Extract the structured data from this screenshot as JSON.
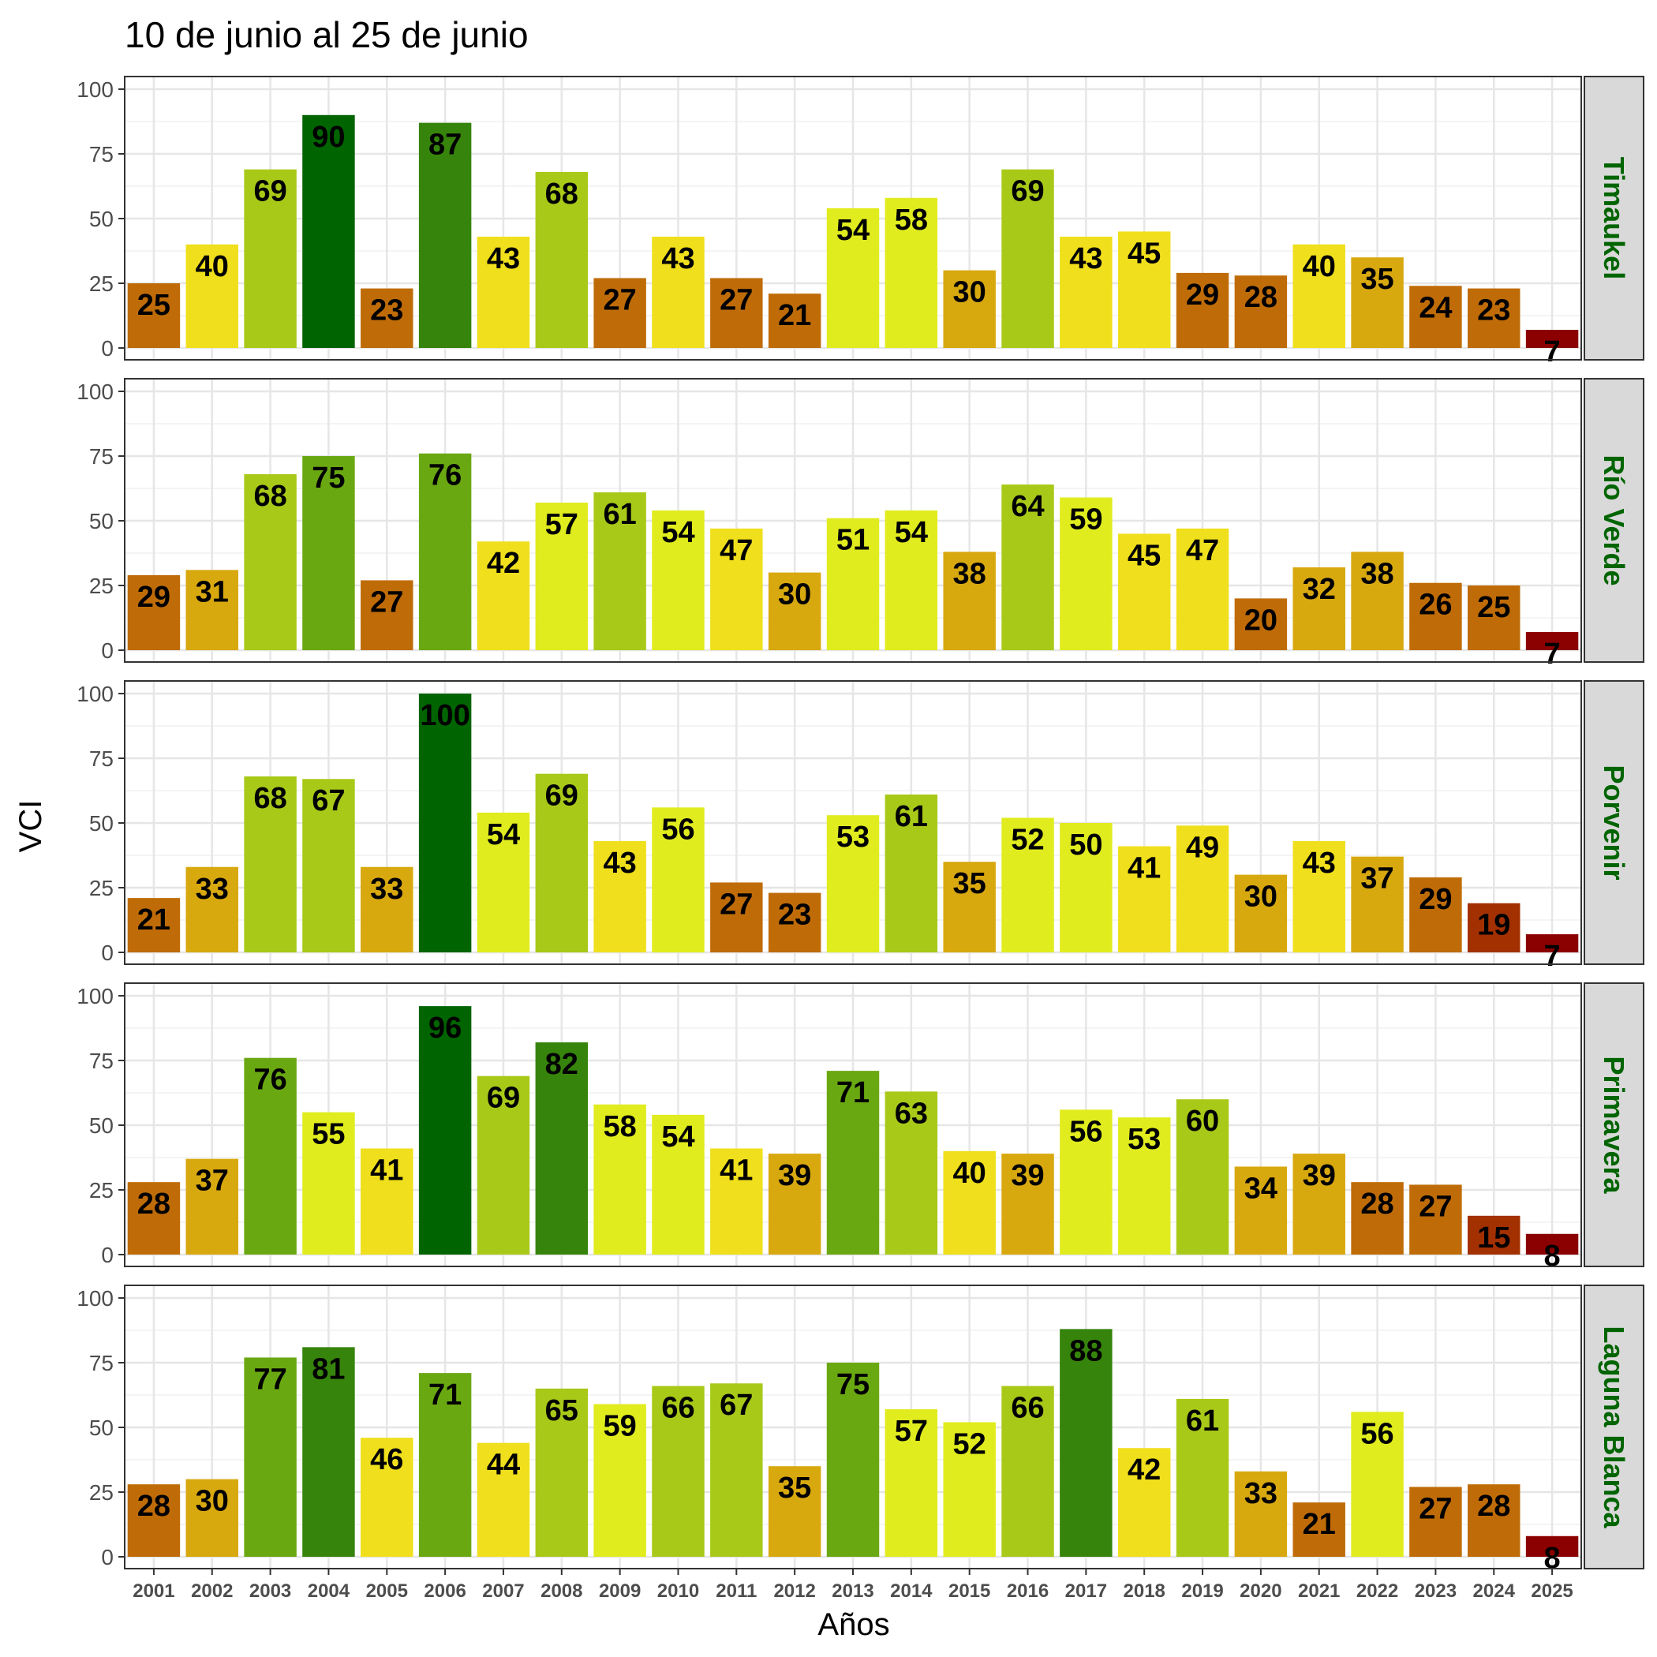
{
  "chart_data": {
    "type": "bar",
    "title": "10 de junio al 25 de junio",
    "xlabel": "Años",
    "ylabel": "VCI",
    "ylim": [
      0,
      100
    ],
    "yticks": [
      0,
      25,
      50,
      75,
      100
    ],
    "categories": [
      "2001",
      "2002",
      "2003",
      "2004",
      "2005",
      "2006",
      "2007",
      "2008",
      "2009",
      "2010",
      "2011",
      "2012",
      "2013",
      "2014",
      "2015",
      "2016",
      "2017",
      "2018",
      "2019",
      "2020",
      "2021",
      "2022",
      "2023",
      "2024",
      "2025"
    ],
    "grid": true,
    "facet_label_color": "#006400",
    "facet_strip_color": "#d9d9d9",
    "color_scale": [
      {
        "min": 0,
        "max": 10,
        "color": "#8b0000"
      },
      {
        "min": 10,
        "max": 20,
        "color": "#a33000"
      },
      {
        "min": 20,
        "max": 30,
        "color": "#bf6c08"
      },
      {
        "min": 30,
        "max": 40,
        "color": "#d8a80f"
      },
      {
        "min": 40,
        "max": 50,
        "color": "#f0df1c"
      },
      {
        "min": 50,
        "max": 60,
        "color": "#e0ec1e"
      },
      {
        "min": 60,
        "max": 70,
        "color": "#a8c918"
      },
      {
        "min": 70,
        "max": 80,
        "color": "#6aa812"
      },
      {
        "min": 80,
        "max": 90,
        "color": "#36840c"
      },
      {
        "min": 90,
        "max": 101,
        "color": "#006400"
      }
    ],
    "series": [
      {
        "name": "Timaukel",
        "values": [
          25,
          40,
          69,
          90,
          23,
          87,
          43,
          68,
          27,
          43,
          27,
          21,
          54,
          58,
          30,
          69,
          43,
          45,
          29,
          28,
          40,
          35,
          24,
          23,
          7
        ]
      },
      {
        "name": "Río Verde",
        "values": [
          29,
          31,
          68,
          75,
          27,
          76,
          42,
          57,
          61,
          54,
          47,
          30,
          51,
          54,
          38,
          64,
          59,
          45,
          47,
          20,
          32,
          38,
          26,
          25,
          7
        ]
      },
      {
        "name": "Porvenir",
        "values": [
          21,
          33,
          68,
          67,
          33,
          100,
          54,
          69,
          43,
          56,
          27,
          23,
          53,
          61,
          35,
          52,
          50,
          41,
          49,
          30,
          43,
          37,
          29,
          19,
          7
        ]
      },
      {
        "name": "Primavera",
        "values": [
          28,
          37,
          76,
          55,
          41,
          96,
          69,
          82,
          58,
          54,
          41,
          39,
          71,
          63,
          40,
          39,
          56,
          53,
          60,
          34,
          39,
          28,
          27,
          15,
          8
        ]
      },
      {
        "name": "Laguna Blanca",
        "values": [
          28,
          30,
          77,
          81,
          46,
          71,
          44,
          65,
          59,
          66,
          67,
          35,
          75,
          57,
          52,
          66,
          88,
          42,
          61,
          33,
          21,
          56,
          27,
          28,
          8
        ]
      }
    ]
  }
}
